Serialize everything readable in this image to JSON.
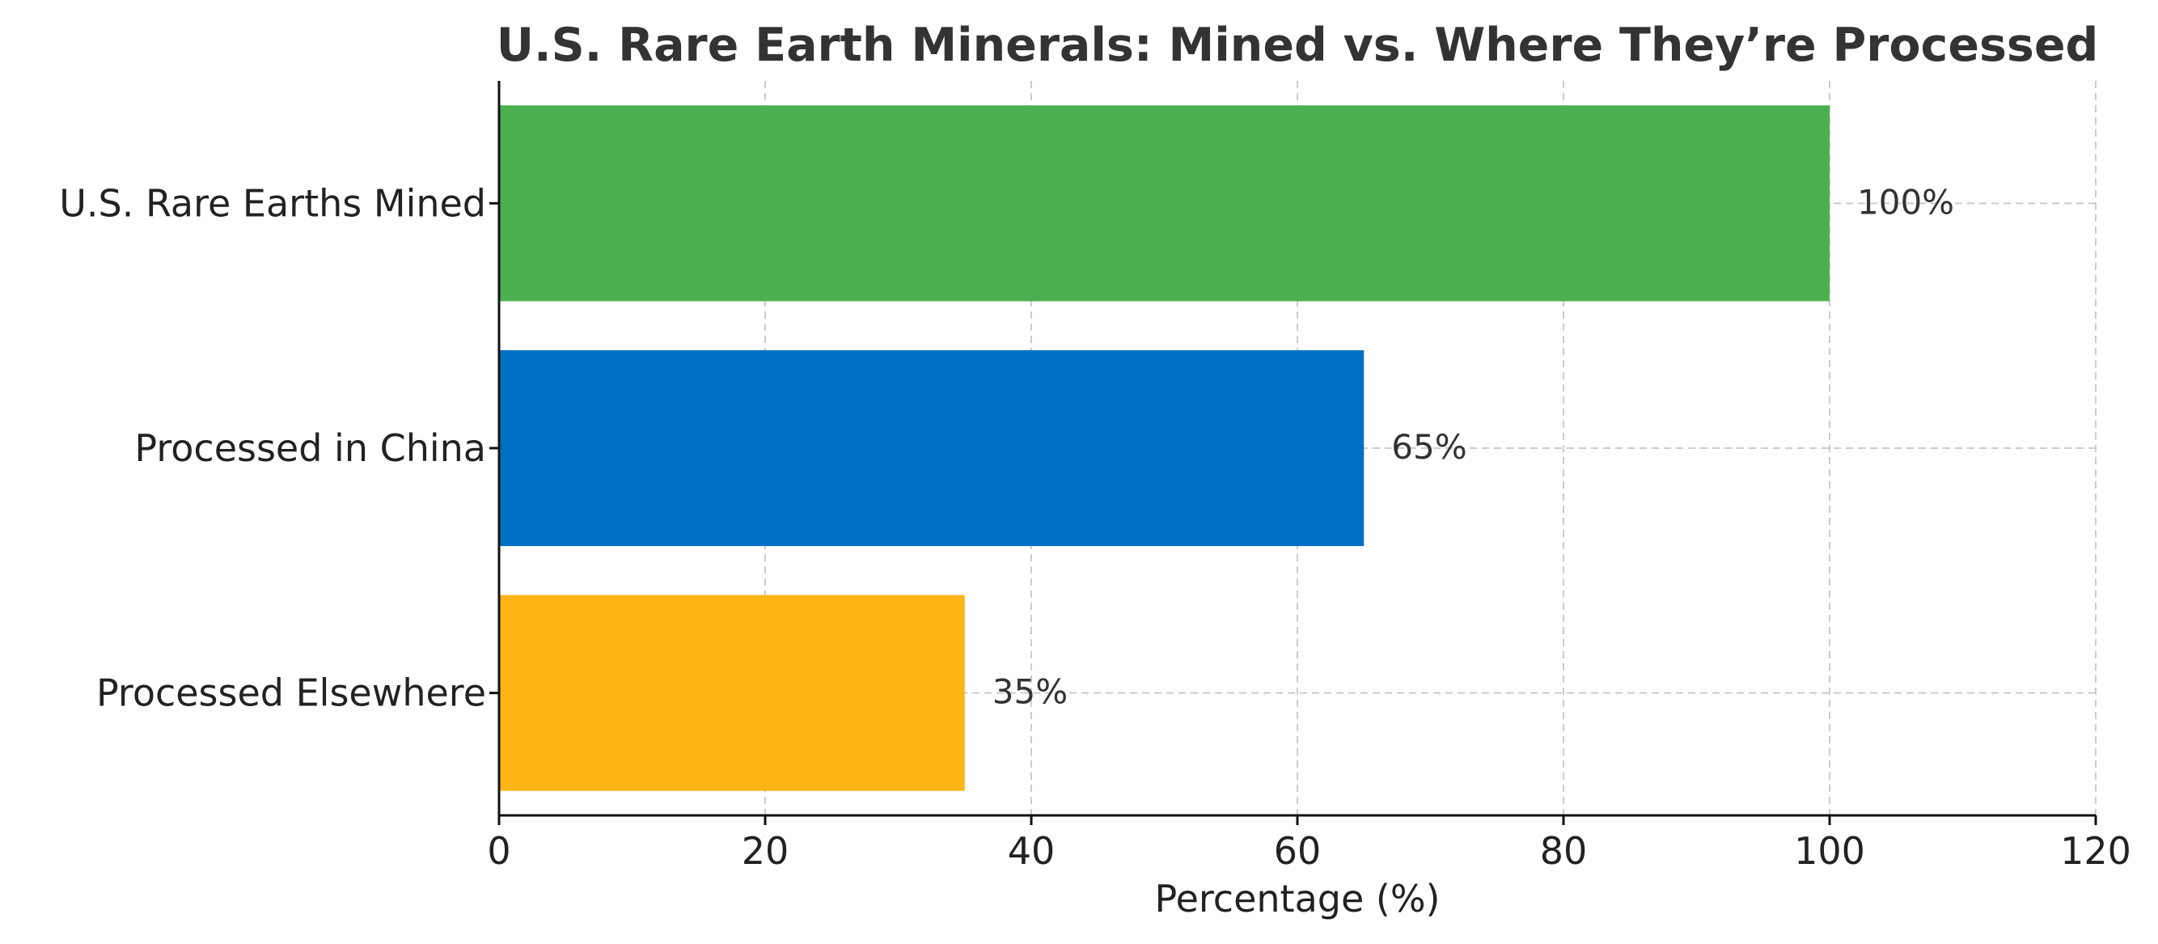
{
  "chart_data": {
    "type": "bar",
    "orientation": "horizontal",
    "title": "U.S. Rare Earth Minerals: Mined vs. Where They’re Processed",
    "xlabel": "Percentage (%)",
    "ylabel": "",
    "xlim": [
      0,
      120
    ],
    "xticks": [
      0,
      20,
      40,
      60,
      80,
      100,
      120
    ],
    "grid": true,
    "categories": [
      "U.S. Rare Earths Mined",
      "Processed in China",
      "Processed Elsewhere"
    ],
    "values": [
      100,
      65,
      35
    ],
    "data_labels": [
      "100%",
      "65%",
      "35%"
    ],
    "colors": [
      "#4caf50",
      "#0070c4",
      "#fdb515"
    ]
  }
}
